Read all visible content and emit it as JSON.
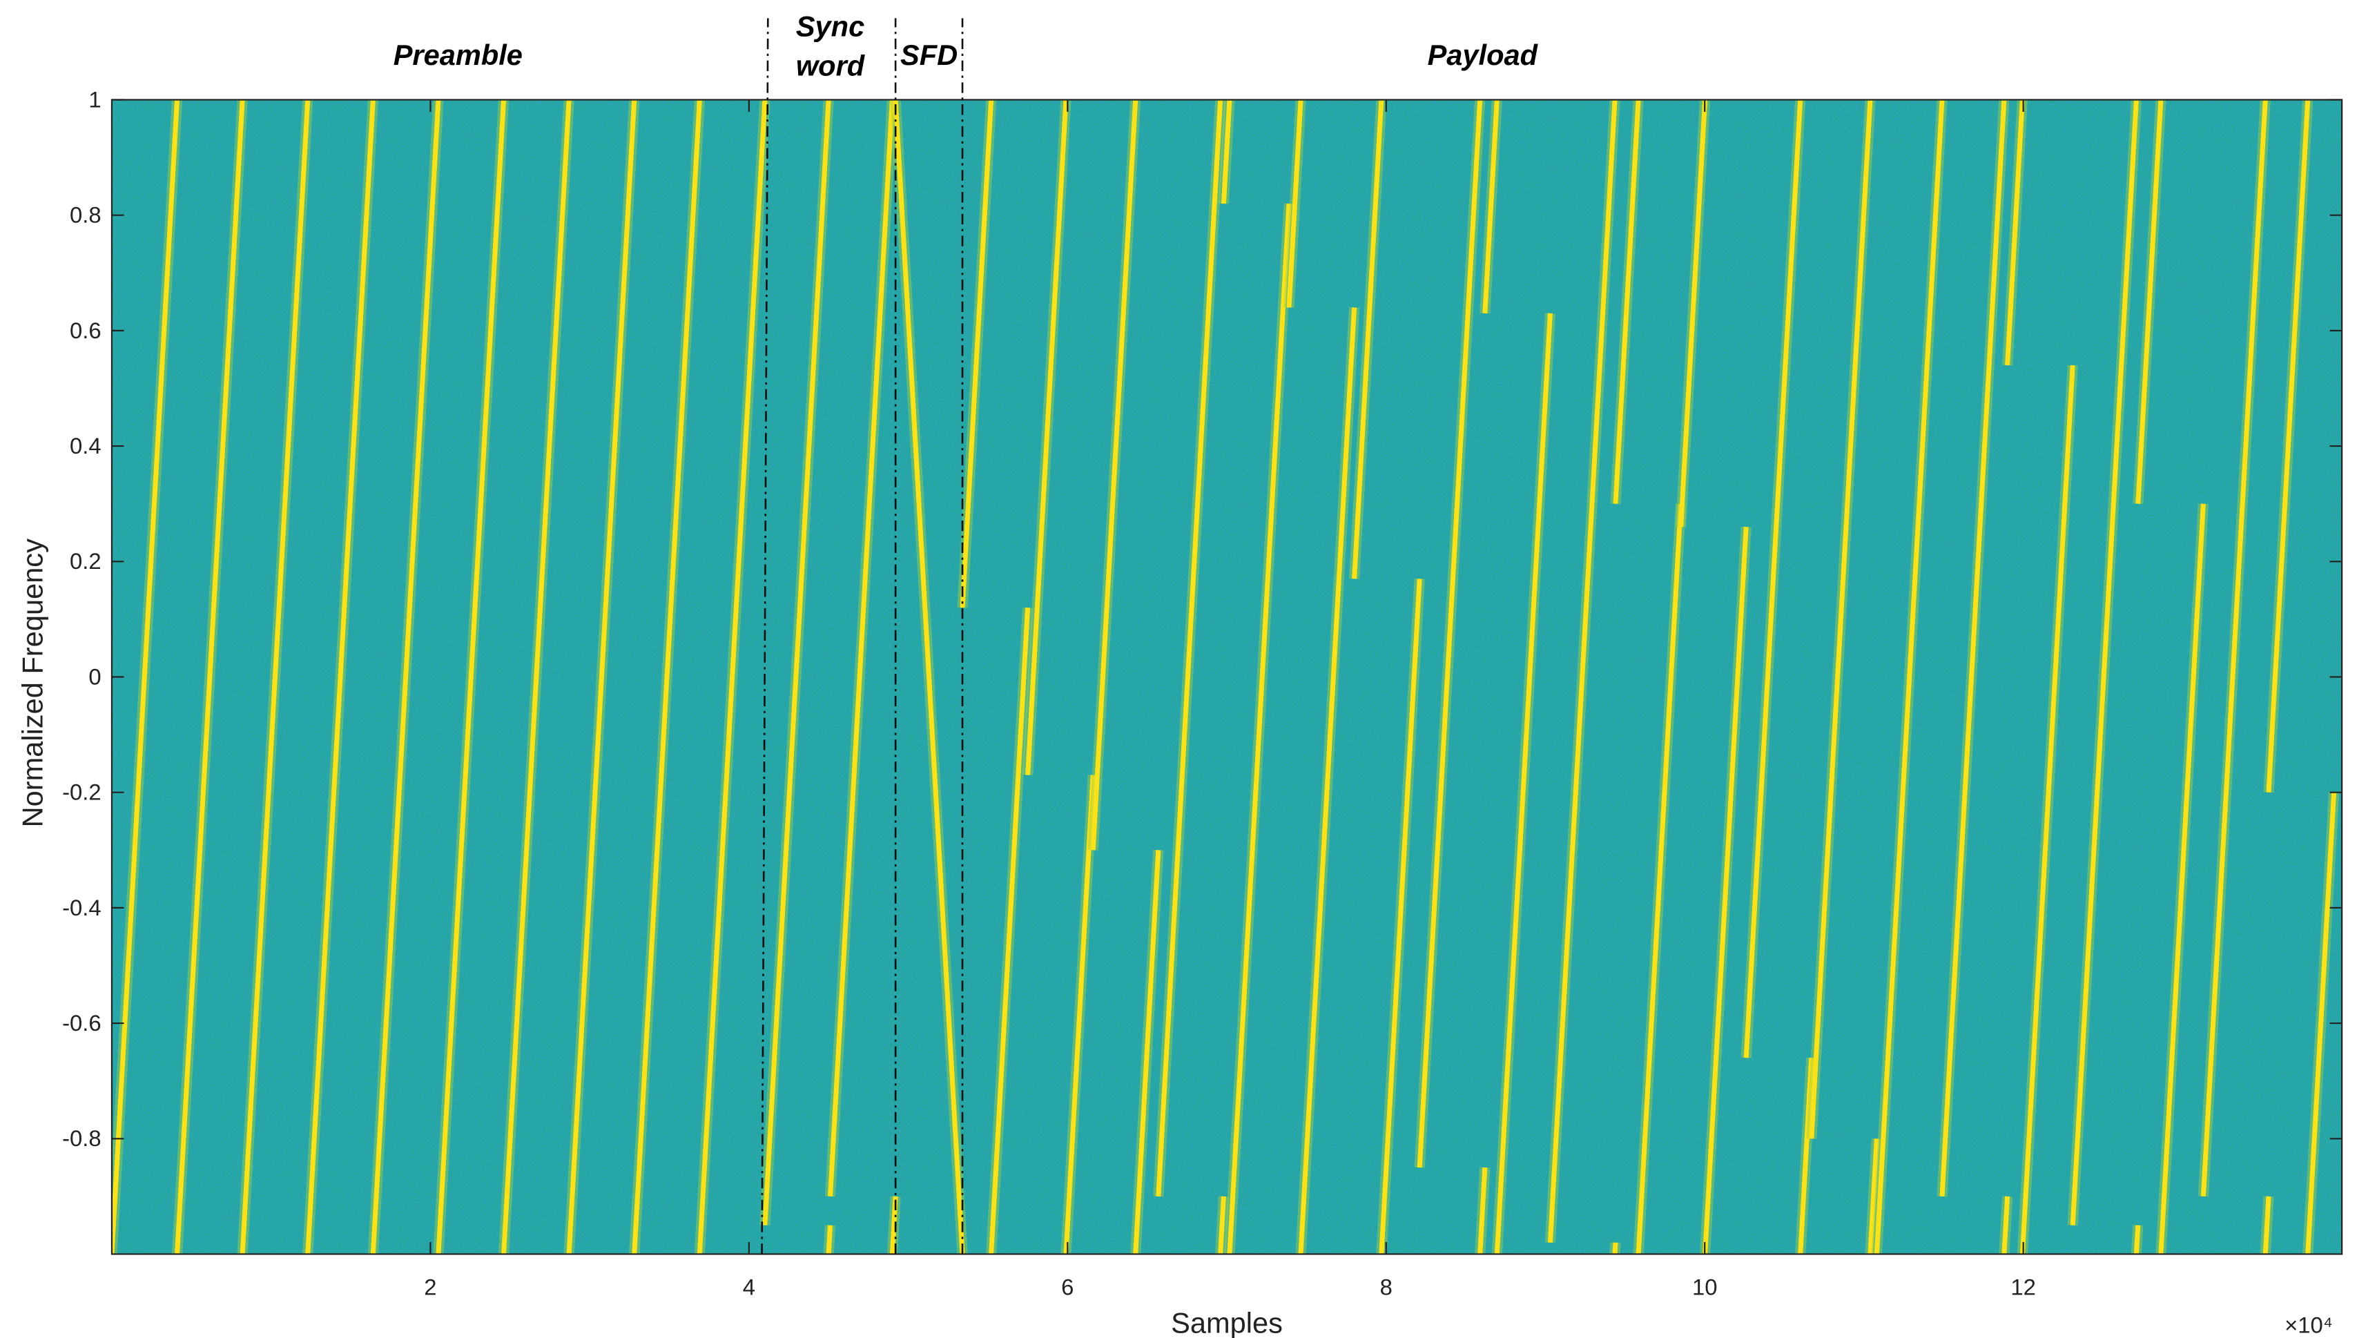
{
  "chart_data": {
    "type": "spectrogram",
    "xlabel": "Samples",
    "ylabel": "Normalized Frequency",
    "x_exponent_label": "×10⁴",
    "xlim": [
      0,
      140000
    ],
    "ylim": [
      -1,
      1
    ],
    "xticks": [
      {
        "value": 20000,
        "label": "2"
      },
      {
        "value": 40000,
        "label": "4"
      },
      {
        "value": 60000,
        "label": "6"
      },
      {
        "value": 80000,
        "label": "8"
      },
      {
        "value": 100000,
        "label": "10"
      },
      {
        "value": 120000,
        "label": "12"
      }
    ],
    "yticks": [
      1,
      0.8,
      0.6,
      0.4,
      0.2,
      0,
      -0.2,
      -0.4,
      -0.6,
      -0.8
    ],
    "background_color": "#22a89c",
    "chirp_color": "#f7e21c",
    "sections": [
      {
        "lines": [
          "Preamble"
        ],
        "start": 0,
        "end": 41000
      },
      {
        "lines": [
          "Sync",
          "word"
        ],
        "start": 41000,
        "end": 49200
      },
      {
        "lines": [
          "SFD"
        ],
        "start": 49200,
        "end": 53400
      },
      {
        "lines": [
          "Payload"
        ],
        "start": 53400,
        "end": 140000
      }
    ],
    "chirps": [
      {
        "start": 0,
        "end": 4100,
        "f0": -1,
        "direction": "up"
      },
      {
        "start": 4100,
        "end": 8200,
        "f0": -1,
        "direction": "up"
      },
      {
        "start": 8200,
        "end": 12300,
        "f0": -1,
        "direction": "up"
      },
      {
        "start": 12300,
        "end": 16400,
        "f0": -1,
        "direction": "up"
      },
      {
        "start": 16400,
        "end": 20500,
        "f0": -1,
        "direction": "up"
      },
      {
        "start": 20500,
        "end": 24600,
        "f0": -1,
        "direction": "up"
      },
      {
        "start": 24600,
        "end": 28700,
        "f0": -1,
        "direction": "up"
      },
      {
        "start": 28700,
        "end": 32800,
        "f0": -1,
        "direction": "up"
      },
      {
        "start": 32800,
        "end": 36900,
        "f0": -1,
        "direction": "up"
      },
      {
        "start": 36900,
        "end": 41000,
        "f0": -1,
        "direction": "up"
      },
      {
        "start": 41000,
        "end": 45100,
        "f0": -0.95,
        "direction": "up"
      },
      {
        "start": 45100,
        "end": 49200,
        "f0": -0.9,
        "direction": "up"
      },
      {
        "start": 49200,
        "end": 53400,
        "f0": 1,
        "direction": "down"
      },
      {
        "start": 53400,
        "end": 57500,
        "f0": 0.12,
        "direction": "up"
      },
      {
        "start": 57500,
        "end": 61600,
        "f0": -0.17,
        "direction": "up"
      },
      {
        "start": 61600,
        "end": 65700,
        "f0": -0.3,
        "direction": "up"
      },
      {
        "start": 65700,
        "end": 69800,
        "f0": -0.9,
        "direction": "up"
      },
      {
        "start": 69800,
        "end": 73900,
        "f0": 0.82,
        "direction": "up"
      },
      {
        "start": 73900,
        "end": 78000,
        "f0": 0.64,
        "direction": "up"
      },
      {
        "start": 78000,
        "end": 82100,
        "f0": 0.17,
        "direction": "up"
      },
      {
        "start": 82100,
        "end": 86200,
        "f0": -0.85,
        "direction": "up"
      },
      {
        "start": 86200,
        "end": 90300,
        "f0": 0.63,
        "direction": "up"
      },
      {
        "start": 90300,
        "end": 94400,
        "f0": -0.98,
        "direction": "up"
      },
      {
        "start": 94400,
        "end": 98500,
        "f0": 0.3,
        "direction": "up"
      },
      {
        "start": 98500,
        "end": 102600,
        "f0": 0.26,
        "direction": "up"
      },
      {
        "start": 102600,
        "end": 106700,
        "f0": -0.66,
        "direction": "up"
      },
      {
        "start": 106700,
        "end": 110800,
        "f0": -0.8,
        "direction": "up"
      },
      {
        "start": 110800,
        "end": 114900,
        "f0": -1,
        "direction": "up"
      },
      {
        "start": 114900,
        "end": 119000,
        "f0": -0.9,
        "direction": "up"
      },
      {
        "start": 119000,
        "end": 123100,
        "f0": 0.54,
        "direction": "up"
      },
      {
        "start": 123100,
        "end": 127200,
        "f0": -0.95,
        "direction": "up"
      },
      {
        "start": 127200,
        "end": 131300,
        "f0": 0.3,
        "direction": "up"
      },
      {
        "start": 131300,
        "end": 135400,
        "f0": -0.9,
        "direction": "up"
      },
      {
        "start": 135400,
        "end": 139500,
        "f0": -0.2,
        "direction": "up"
      }
    ]
  }
}
